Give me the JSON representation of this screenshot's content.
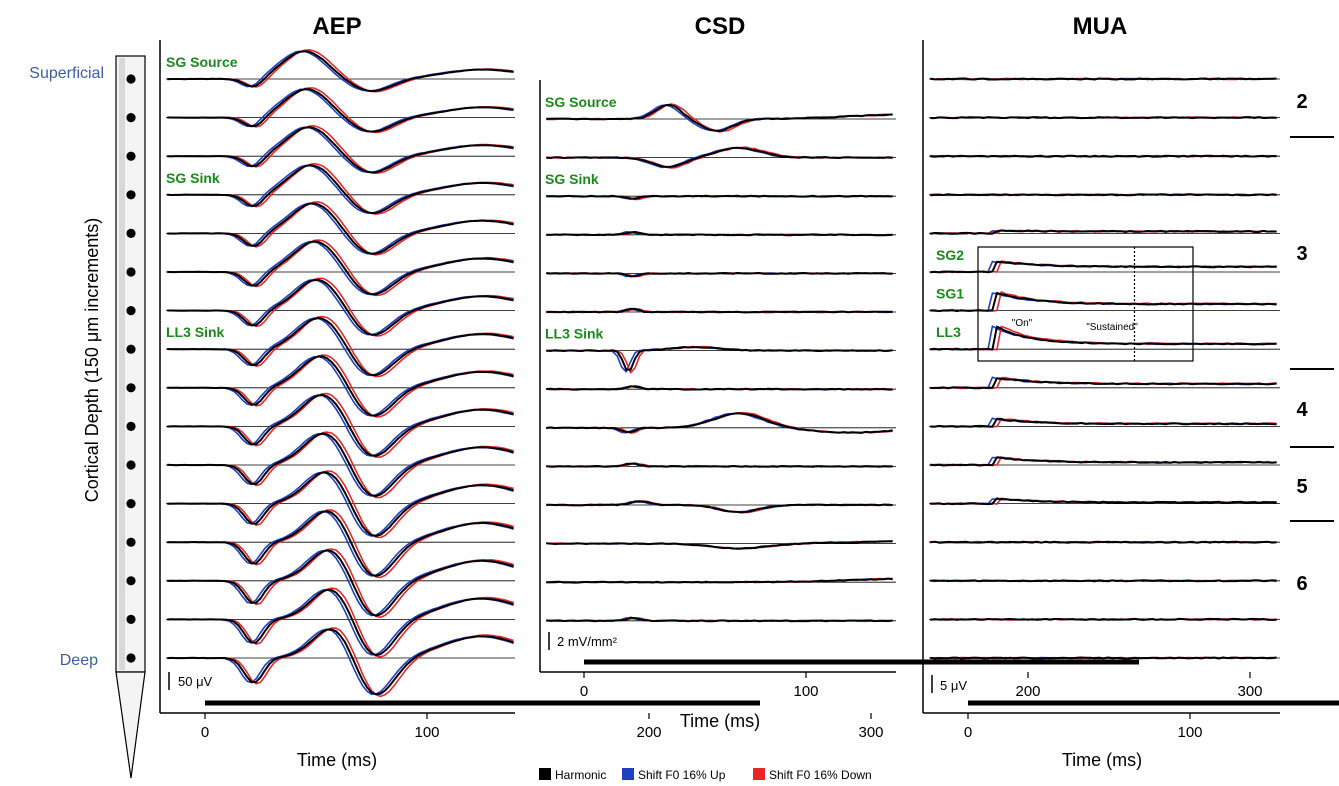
{
  "chart_data": [
    {
      "type": "line",
      "title": "AEP",
      "xlabel": "Time (ms)",
      "xlim": [
        -50,
        350
      ],
      "xticks": [
        0,
        100,
        200,
        300
      ],
      "scale_bar_label": "50 μV",
      "stimulus_bar_ms": [
        0,
        250
      ],
      "channel_count": 16,
      "annotations": [
        {
          "text": "SG Source",
          "channel": 1
        },
        {
          "text": "SG Sink",
          "channel": 4
        },
        {
          "text": "LL3 Sink",
          "channel": 8
        }
      ],
      "series": [
        {
          "name": "Harmonic",
          "color": "#000000"
        },
        {
          "name": "Shift F0 16% Up",
          "color": "#1f3fbf"
        },
        {
          "name": "Shift F0 16% Down",
          "color": "#e8262a"
        }
      ]
    },
    {
      "type": "line",
      "title": "CSD",
      "xlabel": "Time (ms)",
      "xlim": [
        -50,
        350
      ],
      "xticks": [
        0,
        100,
        200,
        300
      ],
      "scale_bar_label": "2 mV/mm²",
      "stimulus_bar_ms": [
        0,
        250
      ],
      "channel_count": 14,
      "annotations": [
        {
          "text": "SG Source",
          "channel": 1
        },
        {
          "text": "SG Sink",
          "channel": 3
        },
        {
          "text": "LL3 Sink",
          "channel": 7
        }
      ],
      "series": [
        {
          "name": "Harmonic",
          "color": "#000000"
        },
        {
          "name": "Shift F0 16% Up",
          "color": "#1f3fbf"
        },
        {
          "name": "Shift F0 16% Down",
          "color": "#e8262a"
        }
      ]
    },
    {
      "type": "line",
      "title": "MUA",
      "xlabel": "Time (ms)",
      "xlim": [
        -50,
        350
      ],
      "xticks": [
        0,
        100,
        200,
        300
      ],
      "scale_bar_label": "5 μV",
      "stimulus_bar_ms": [
        0,
        250
      ],
      "channel_count": 16,
      "annotations": [
        {
          "text": "SG2",
          "channel": 6
        },
        {
          "text": "SG1",
          "channel": 7
        },
        {
          "text": "LL3",
          "channel": 8
        }
      ],
      "box_labels": {
        "on": "\"On\"",
        "sustained": "\"Sustained\""
      },
      "on_boundary_ms": 75,
      "series": [
        {
          "name": "Harmonic",
          "color": "#000000"
        },
        {
          "name": "Shift F0 16% Up",
          "color": "#1f3fbf"
        },
        {
          "name": "Shift F0 16% Down",
          "color": "#e8262a"
        }
      ]
    }
  ],
  "depth_axis": {
    "label": "Cortical Depth (150 μm increments)",
    "top": "Superficial",
    "bottom": "Deep",
    "contacts": 16
  },
  "layers": [
    "2",
    "3",
    "4",
    "5",
    "6"
  ],
  "legend": [
    {
      "label": "Harmonic",
      "color": "#000000"
    },
    {
      "label": "Shift F0 16% Up",
      "color": "#1f3fbf"
    },
    {
      "label": "Shift F0 16% Down",
      "color": "#e8262a"
    }
  ]
}
